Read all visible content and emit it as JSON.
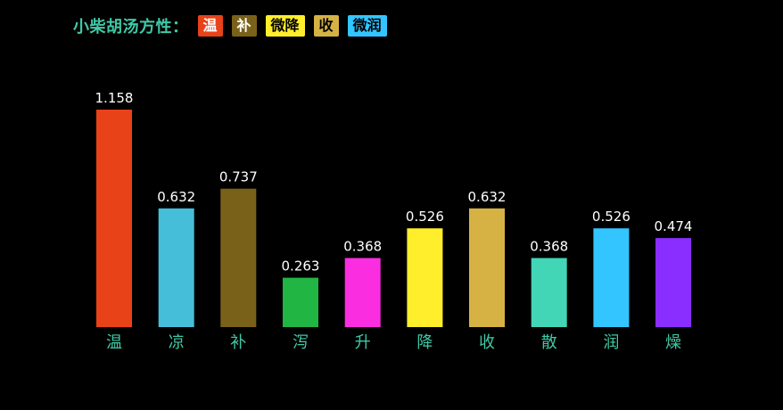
{
  "title": "小柴胡汤方性：",
  "tags": [
    {
      "label": "温",
      "bg": "#e84219",
      "fg": "#ffffff"
    },
    {
      "label": "补",
      "bg": "#7a6119",
      "fg": "#ffffff"
    },
    {
      "label": "微降",
      "bg": "#ffee2b",
      "fg": "#000000"
    },
    {
      "label": "收",
      "bg": "#d6b245",
      "fg": "#000000"
    },
    {
      "label": "微润",
      "bg": "#33c5ff",
      "fg": "#000000"
    }
  ],
  "chart_data": {
    "type": "bar",
    "categories": [
      "温",
      "凉",
      "补",
      "泻",
      "升",
      "降",
      "收",
      "散",
      "润",
      "燥"
    ],
    "values": [
      1.158,
      0.632,
      0.737,
      0.263,
      0.368,
      0.526,
      0.632,
      0.368,
      0.526,
      0.474
    ],
    "data_labels": [
      "1.158",
      "0.632",
      "0.737",
      "0.263",
      "0.368",
      "0.526",
      "0.632",
      "0.368",
      "0.526",
      "0.474"
    ],
    "colors": [
      "#e84219",
      "#45bfd9",
      "#7a6119",
      "#21b544",
      "#fa2ee0",
      "#ffee2b",
      "#d6b245",
      "#42d6b7",
      "#33c5ff",
      "#8a2eff"
    ],
    "ylim": [
      0,
      1.158
    ],
    "label_color": "#ffffff",
    "category_color": "#3fc9a6",
    "grid": false
  }
}
